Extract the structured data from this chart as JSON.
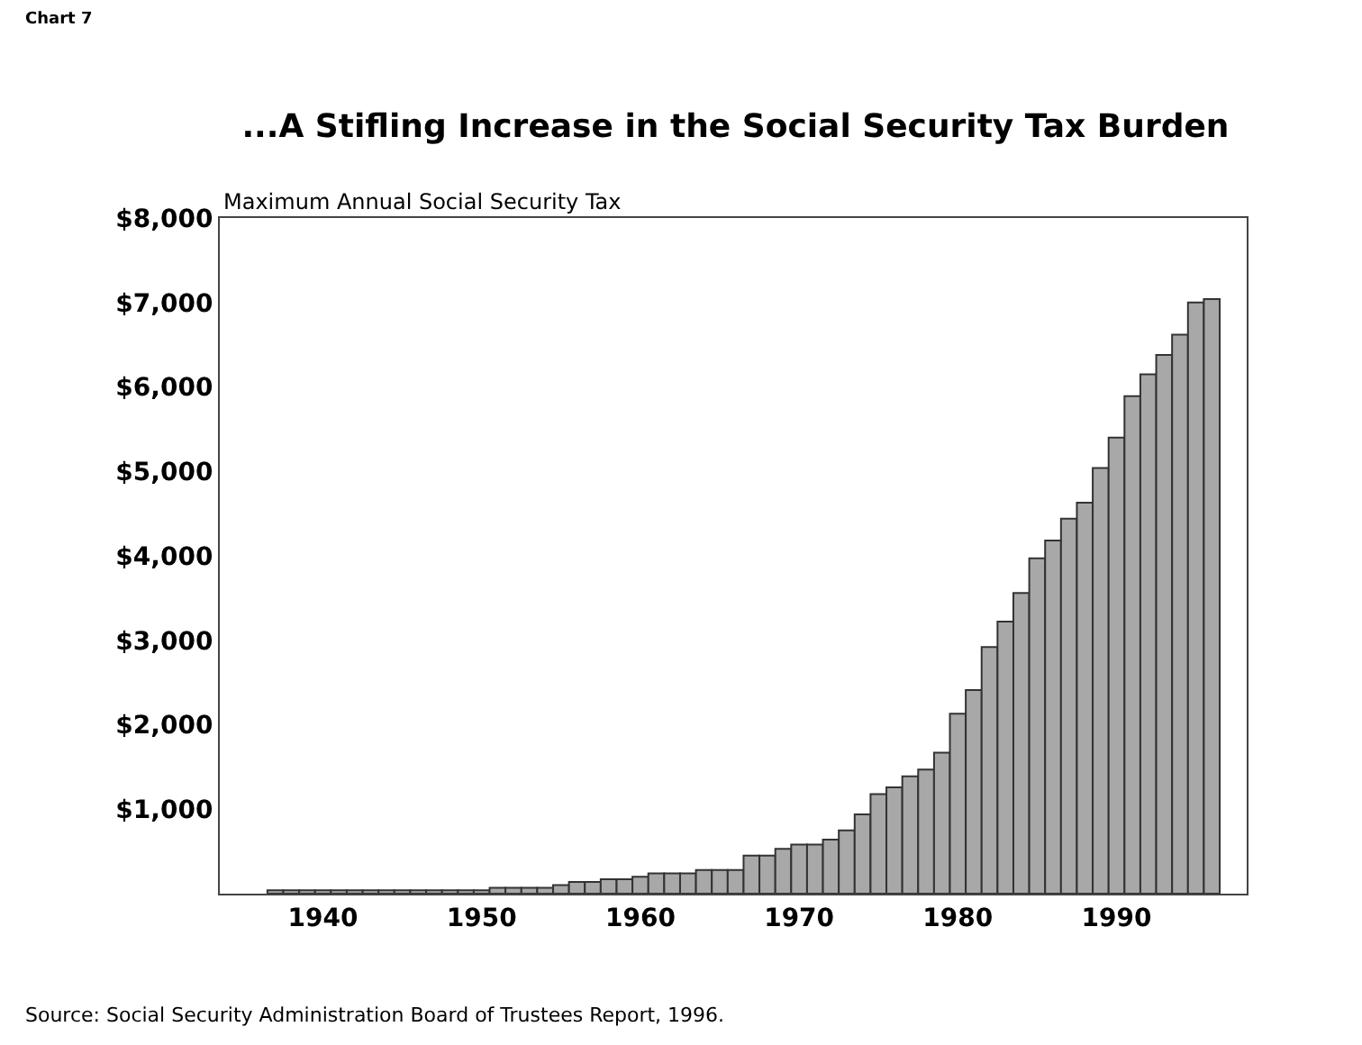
{
  "chart_data": {
    "type": "bar",
    "title": "...A Stifling Increase in the Social Security Tax Burden",
    "ylabel": "Maximum Annual Social Security Tax",
    "annotations": [
      "Chart 7",
      "Source: Social Security Administration Board of Trustees Report, 1996."
    ],
    "x": [
      1937,
      1938,
      1939,
      1940,
      1941,
      1942,
      1943,
      1944,
      1945,
      1946,
      1947,
      1948,
      1949,
      1950,
      1951,
      1952,
      1953,
      1954,
      1955,
      1956,
      1957,
      1958,
      1959,
      1960,
      1961,
      1962,
      1963,
      1964,
      1965,
      1966,
      1967,
      1968,
      1969,
      1970,
      1971,
      1972,
      1973,
      1974,
      1975,
      1976,
      1977,
      1978,
      1979,
      1980,
      1981,
      1982,
      1983,
      1984,
      1985,
      1986,
      1987,
      1988,
      1989,
      1990,
      1991,
      1992,
      1993,
      1994,
      1995,
      1996
    ],
    "values": [
      40,
      40,
      40,
      40,
      40,
      40,
      40,
      40,
      40,
      40,
      40,
      40,
      40,
      40,
      70,
      70,
      70,
      70,
      100,
      140,
      140,
      170,
      170,
      200,
      240,
      240,
      240,
      280,
      280,
      280,
      450,
      450,
      530,
      580,
      580,
      640,
      750,
      940,
      1180,
      1260,
      1390,
      1470,
      1670,
      2130,
      2410,
      2920,
      3220,
      3560,
      3970,
      4180,
      4440,
      4630,
      5040,
      5400,
      5890,
      6150,
      6380,
      6620,
      7000,
      7040
    ],
    "color": "#a8a8a8",
    "xlim": [
      1933.5,
      1998.2
    ],
    "xticks": [
      1940,
      1950,
      1960,
      1970,
      1980,
      1990
    ],
    "ylim": [
      0,
      8000
    ],
    "yticks": [
      {
        "value": 1000,
        "label": "$1,000"
      },
      {
        "value": 2000,
        "label": "$2,000"
      },
      {
        "value": 3000,
        "label": "$3,000"
      },
      {
        "value": 4000,
        "label": "$4,000"
      },
      {
        "value": 5000,
        "label": "$5,000"
      },
      {
        "value": 6000,
        "label": "$6,000"
      },
      {
        "value": 7000,
        "label": "$7,000"
      },
      {
        "value": 8000,
        "label": "$8,000"
      }
    ],
    "grid": false
  }
}
